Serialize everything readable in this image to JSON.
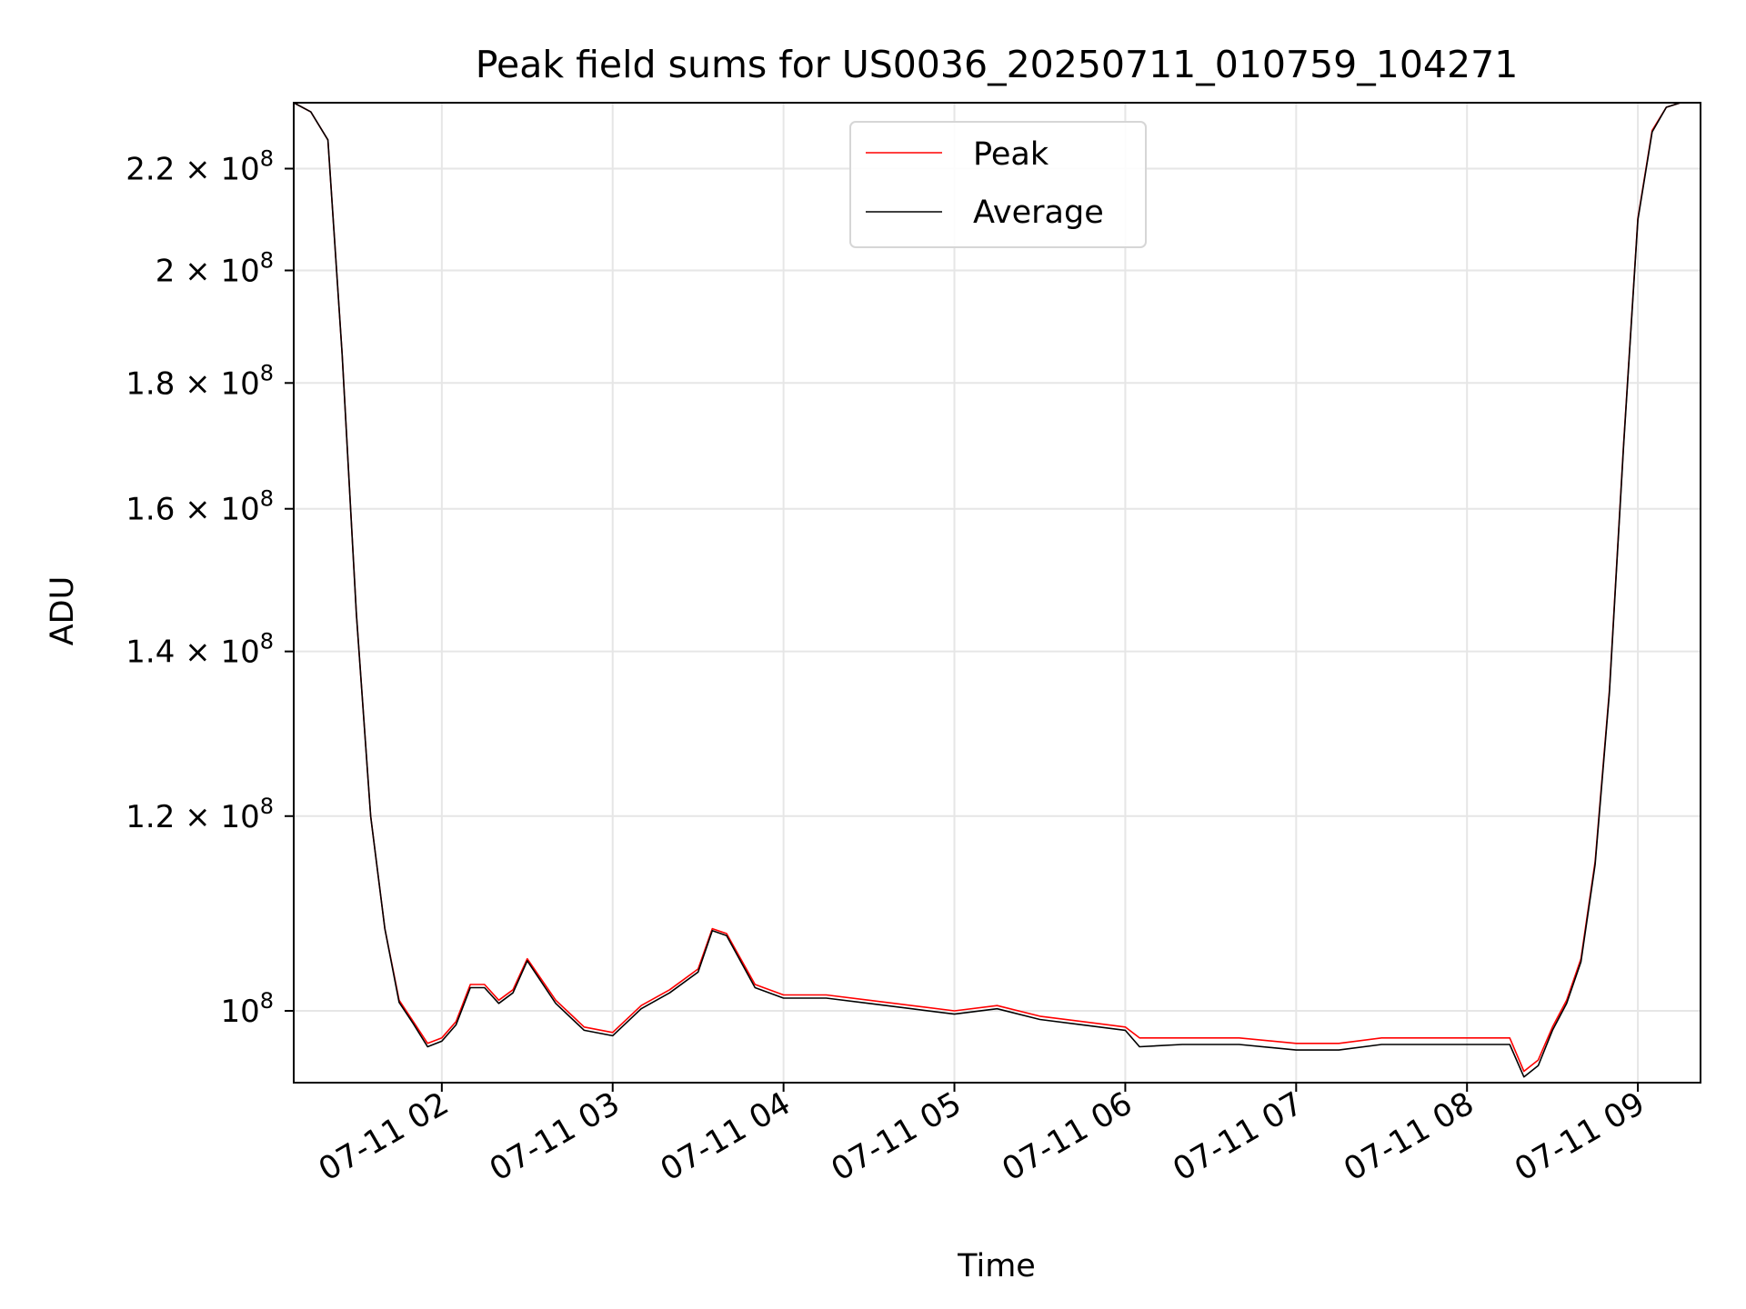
{
  "chart_data": {
    "type": "line",
    "title": "Peak field sums for US0036_20250711_010759_104271",
    "xlabel": "Time",
    "ylabel": "ADU",
    "y_scale": "log",
    "xlim": [
      "2025-07-11 01:08",
      "2025-07-11 09:22"
    ],
    "ylim": [
      93500000,
      234000000
    ],
    "x_ticks": [
      {
        "value": "2025-07-11 02:00",
        "label": "07-11 02"
      },
      {
        "value": "2025-07-11 03:00",
        "label": "07-11 03"
      },
      {
        "value": "2025-07-11 04:00",
        "label": "07-11 04"
      },
      {
        "value": "2025-07-11 05:00",
        "label": "07-11 05"
      },
      {
        "value": "2025-07-11 06:00",
        "label": "07-11 06"
      },
      {
        "value": "2025-07-11 07:00",
        "label": "07-11 07"
      },
      {
        "value": "2025-07-11 08:00",
        "label": "07-11 08"
      },
      {
        "value": "2025-07-11 09:00",
        "label": "07-11 09"
      }
    ],
    "y_ticks": [
      {
        "value": 220000000,
        "mantissa": "2.2",
        "times": "×",
        "base": "10",
        "exp": "8"
      },
      {
        "value": 200000000,
        "mantissa": "2",
        "times": "×",
        "base": "10",
        "exp": "8"
      },
      {
        "value": 180000000,
        "mantissa": "1.8",
        "times": "×",
        "base": "10",
        "exp": "8"
      },
      {
        "value": 160000000,
        "mantissa": "1.6",
        "times": "×",
        "base": "10",
        "exp": "8"
      },
      {
        "value": 140000000,
        "mantissa": "1.4",
        "times": "×",
        "base": "10",
        "exp": "8"
      },
      {
        "value": 120000000,
        "mantissa": "1.2",
        "times": "×",
        "base": "10",
        "exp": "8"
      },
      {
        "value": 100000000,
        "mantissa": "",
        "times": "",
        "base": "10",
        "exp": "8"
      }
    ],
    "grid": true,
    "legend_position": "top-center",
    "series": [
      {
        "name": "Peak",
        "color": "#ff0000",
        "x": [
          "2025-07-11 01:08",
          "2025-07-11 01:14",
          "2025-07-11 01:20",
          "2025-07-11 01:25",
          "2025-07-11 01:30",
          "2025-07-11 01:35",
          "2025-07-11 01:40",
          "2025-07-11 01:45",
          "2025-07-11 01:50",
          "2025-07-11 01:55",
          "2025-07-11 02:00",
          "2025-07-11 02:05",
          "2025-07-11 02:10",
          "2025-07-11 02:15",
          "2025-07-11 02:20",
          "2025-07-11 02:25",
          "2025-07-11 02:30",
          "2025-07-11 02:40",
          "2025-07-11 02:50",
          "2025-07-11 03:00",
          "2025-07-11 03:10",
          "2025-07-11 03:20",
          "2025-07-11 03:30",
          "2025-07-11 03:35",
          "2025-07-11 03:40",
          "2025-07-11 03:50",
          "2025-07-11 04:00",
          "2025-07-11 04:15",
          "2025-07-11 04:30",
          "2025-07-11 04:45",
          "2025-07-11 05:00",
          "2025-07-11 05:15",
          "2025-07-11 05:30",
          "2025-07-11 05:45",
          "2025-07-11 06:00",
          "2025-07-11 06:05",
          "2025-07-11 06:20",
          "2025-07-11 06:40",
          "2025-07-11 07:00",
          "2025-07-11 07:15",
          "2025-07-11 07:30",
          "2025-07-11 07:45",
          "2025-07-11 08:00",
          "2025-07-11 08:15",
          "2025-07-11 08:20",
          "2025-07-11 08:25",
          "2025-07-11 08:30",
          "2025-07-11 08:35",
          "2025-07-11 08:40",
          "2025-07-11 08:45",
          "2025-07-11 08:50",
          "2025-07-11 08:55",
          "2025-07-11 09:00",
          "2025-07-11 09:05",
          "2025-07-11 09:10",
          "2025-07-11 09:15",
          "2025-07-11 09:22"
        ],
        "y": [
          234000000,
          232000000,
          226000000,
          185000000,
          145000000,
          120000000,
          108000000,
          101000000,
          99000000,
          97000000,
          97500000,
          99000000,
          102500000,
          102500000,
          101000000,
          102000000,
          105000000,
          101000000,
          98500000,
          98000000,
          100500000,
          102000000,
          104000000,
          108000000,
          107500000,
          102500000,
          101500000,
          101500000,
          101000000,
          100500000,
          100000000,
          100500000,
          99500000,
          99000000,
          98500000,
          97500000,
          97500000,
          97500000,
          97000000,
          97000000,
          97500000,
          97500000,
          97500000,
          97500000,
          94500000,
          95500000,
          98500000,
          101000000,
          105000000,
          115000000,
          135000000,
          170000000,
          210000000,
          228000000,
          233000000,
          234000000,
          234000000
        ]
      },
      {
        "name": "Average",
        "color": "#000000",
        "x": [
          "2025-07-11 01:08",
          "2025-07-11 01:14",
          "2025-07-11 01:20",
          "2025-07-11 01:25",
          "2025-07-11 01:30",
          "2025-07-11 01:35",
          "2025-07-11 01:40",
          "2025-07-11 01:45",
          "2025-07-11 01:50",
          "2025-07-11 01:55",
          "2025-07-11 02:00",
          "2025-07-11 02:05",
          "2025-07-11 02:10",
          "2025-07-11 02:15",
          "2025-07-11 02:20",
          "2025-07-11 02:25",
          "2025-07-11 02:30",
          "2025-07-11 02:40",
          "2025-07-11 02:50",
          "2025-07-11 03:00",
          "2025-07-11 03:10",
          "2025-07-11 03:20",
          "2025-07-11 03:30",
          "2025-07-11 03:35",
          "2025-07-11 03:40",
          "2025-07-11 03:50",
          "2025-07-11 04:00",
          "2025-07-11 04:15",
          "2025-07-11 04:30",
          "2025-07-11 04:45",
          "2025-07-11 05:00",
          "2025-07-11 05:15",
          "2025-07-11 05:30",
          "2025-07-11 05:45",
          "2025-07-11 06:00",
          "2025-07-11 06:05",
          "2025-07-11 06:20",
          "2025-07-11 06:40",
          "2025-07-11 07:00",
          "2025-07-11 07:15",
          "2025-07-11 07:30",
          "2025-07-11 07:45",
          "2025-07-11 08:00",
          "2025-07-11 08:15",
          "2025-07-11 08:20",
          "2025-07-11 08:25",
          "2025-07-11 08:30",
          "2025-07-11 08:35",
          "2025-07-11 08:40",
          "2025-07-11 08:45",
          "2025-07-11 08:50",
          "2025-07-11 08:55",
          "2025-07-11 09:00",
          "2025-07-11 09:05",
          "2025-07-11 09:10",
          "2025-07-11 09:15",
          "2025-07-11 09:22"
        ],
        "y": [
          234000000,
          232000000,
          226000000,
          185000000,
          145000000,
          120000000,
          108000000,
          100800000,
          98800000,
          96700000,
          97200000,
          98700000,
          102200000,
          102200000,
          100700000,
          101700000,
          104800000,
          100700000,
          98200000,
          97700000,
          100200000,
          101700000,
          103700000,
          107800000,
          107300000,
          102200000,
          101200000,
          101200000,
          100700000,
          100200000,
          99700000,
          100200000,
          99200000,
          98700000,
          98200000,
          96700000,
          96900000,
          96900000,
          96400000,
          96400000,
          96900000,
          96900000,
          96900000,
          96900000,
          94000000,
          95000000,
          98200000,
          100700000,
          104700000,
          114700000,
          134700000,
          169700000,
          209700000,
          227700000,
          233000000,
          234000000,
          234000000
        ]
      }
    ]
  }
}
